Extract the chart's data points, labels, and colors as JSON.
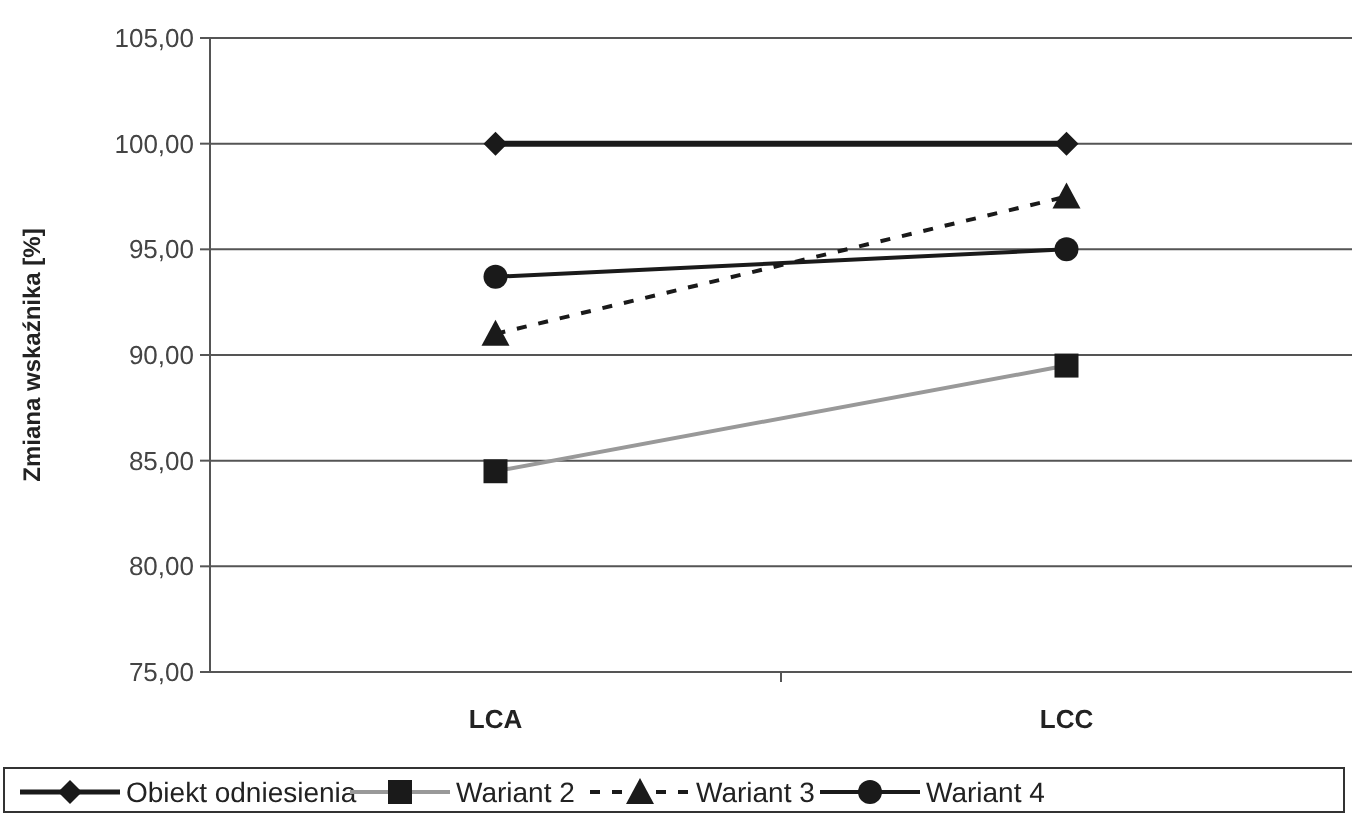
{
  "chart_data": {
    "type": "line",
    "ylabel": "Zmiana wskaźnika [%]",
    "categories": [
      "LCA",
      "LCC"
    ],
    "series": [
      {
        "name": "Obiekt odniesienia",
        "color": "#1a1a1a",
        "values": [
          100.0,
          100.0
        ],
        "marker": "diamond",
        "line_style": "solid"
      },
      {
        "name": "Wariant 2",
        "color": "#999999",
        "values": [
          84.5,
          89.5
        ],
        "marker": "square",
        "line_style": "solid"
      },
      {
        "name": "Wariant 3",
        "color": "#1a1a1a",
        "values": [
          91.0,
          97.5
        ],
        "marker": "triangle",
        "line_style": "dashed"
      },
      {
        "name": "Wariant 4",
        "color": "#1a1a1a",
        "values": [
          93.7,
          95.0
        ],
        "marker": "circle",
        "line_style": "solid"
      }
    ],
    "ylim": [
      75,
      105
    ],
    "yticks": [
      {
        "value": 75,
        "label": "75,00"
      },
      {
        "value": 80,
        "label": "80,00"
      },
      {
        "value": 85,
        "label": "85,00"
      },
      {
        "value": 90,
        "label": "90,00"
      },
      {
        "value": 95,
        "label": "95,00"
      },
      {
        "value": 100,
        "label": "100,00"
      },
      {
        "value": 105,
        "label": "105,00"
      }
    ],
    "grid": "y",
    "legend": "bottom"
  }
}
